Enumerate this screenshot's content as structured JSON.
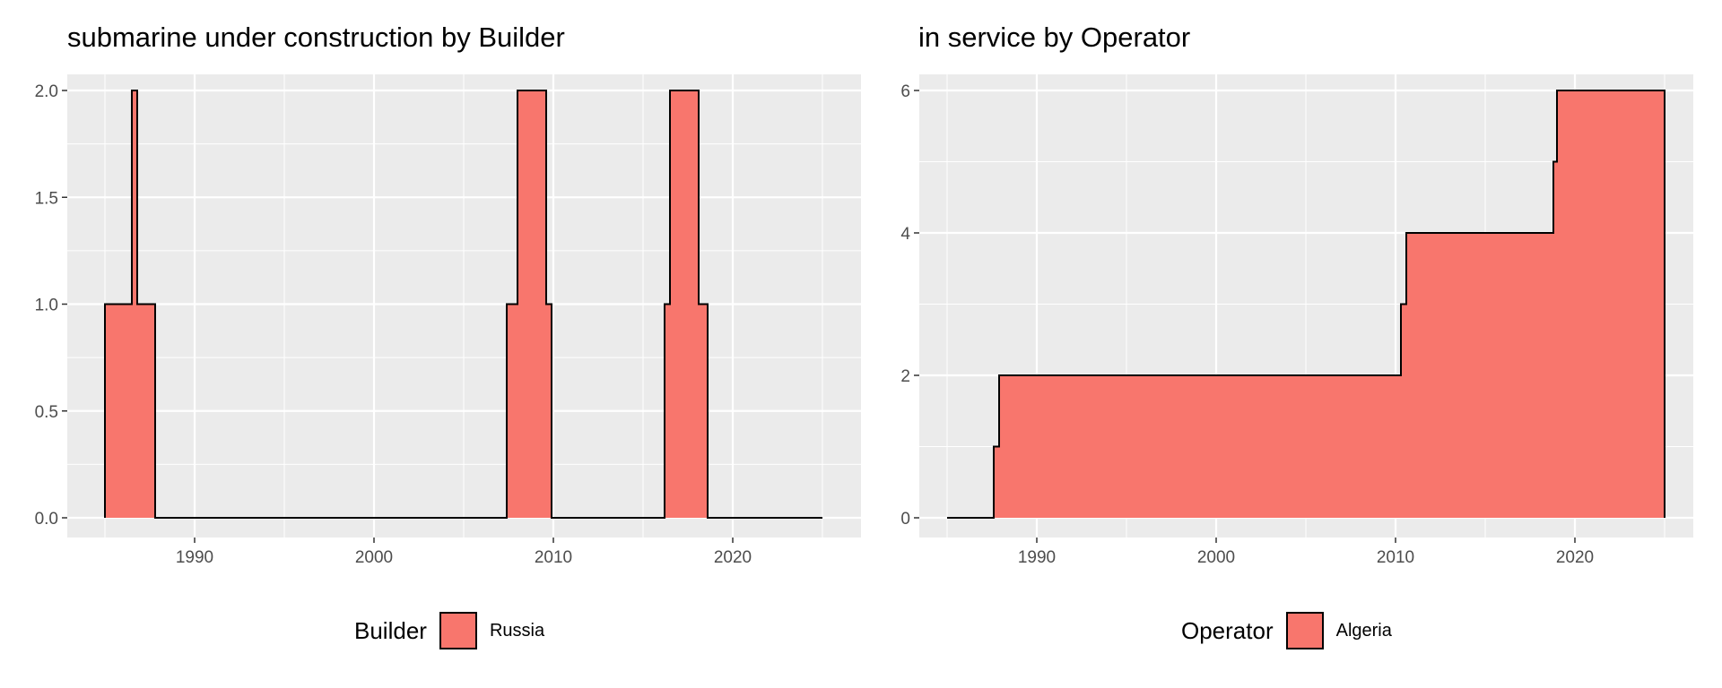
{
  "chart_data": [
    {
      "type": "area",
      "title": "submarine under construction by Builder",
      "x_ticks": [
        1990,
        2000,
        2010,
        2020
      ],
      "y_ticks": [
        "0.0",
        "0.5",
        "1.0",
        "1.5",
        "2.0"
      ],
      "xlim": [
        1985,
        2025
      ],
      "ylim": [
        0,
        2
      ],
      "grid": true,
      "legend_position": "bottom",
      "legend_title": "Builder",
      "fill_color": "#F8766D",
      "outline_color": "#000000",
      "series": [
        {
          "name": "Russia",
          "x": [
            1985.0,
            1985.0,
            1986.5,
            1986.5,
            1986.8,
            1986.8,
            1987.8,
            1987.8,
            2007.4,
            2007.4,
            2008.0,
            2008.0,
            2009.6,
            2009.6,
            2009.9,
            2009.9,
            2016.2,
            2016.2,
            2016.5,
            2016.5,
            2018.1,
            2018.1,
            2018.6,
            2018.6,
            2025.0
          ],
          "y": [
            0,
            1,
            1,
            2,
            2,
            1,
            1,
            0,
            0,
            1,
            1,
            2,
            2,
            1,
            1,
            0,
            0,
            1,
            1,
            2,
            2,
            1,
            1,
            0,
            0
          ]
        }
      ]
    },
    {
      "type": "area",
      "title": "in service by Operator",
      "x_ticks": [
        1990,
        2000,
        2010,
        2020
      ],
      "y_ticks": [
        "0",
        "2",
        "4",
        "6"
      ],
      "xlim": [
        1985,
        2025
      ],
      "ylim": [
        0,
        6
      ],
      "grid": true,
      "legend_position": "bottom",
      "legend_title": "Operator",
      "fill_color": "#F8766D",
      "outline_color": "#000000",
      "series": [
        {
          "name": "Algeria",
          "x": [
            1985.0,
            1987.6,
            1987.6,
            1987.9,
            1987.9,
            2010.3,
            2010.3,
            2010.6,
            2010.6,
            2018.8,
            2018.8,
            2019.0,
            2019.0,
            2025.0,
            2025.0
          ],
          "y": [
            0,
            0,
            1,
            1,
            2,
            2,
            3,
            3,
            4,
            4,
            5,
            5,
            6,
            6,
            0
          ]
        }
      ]
    }
  ]
}
